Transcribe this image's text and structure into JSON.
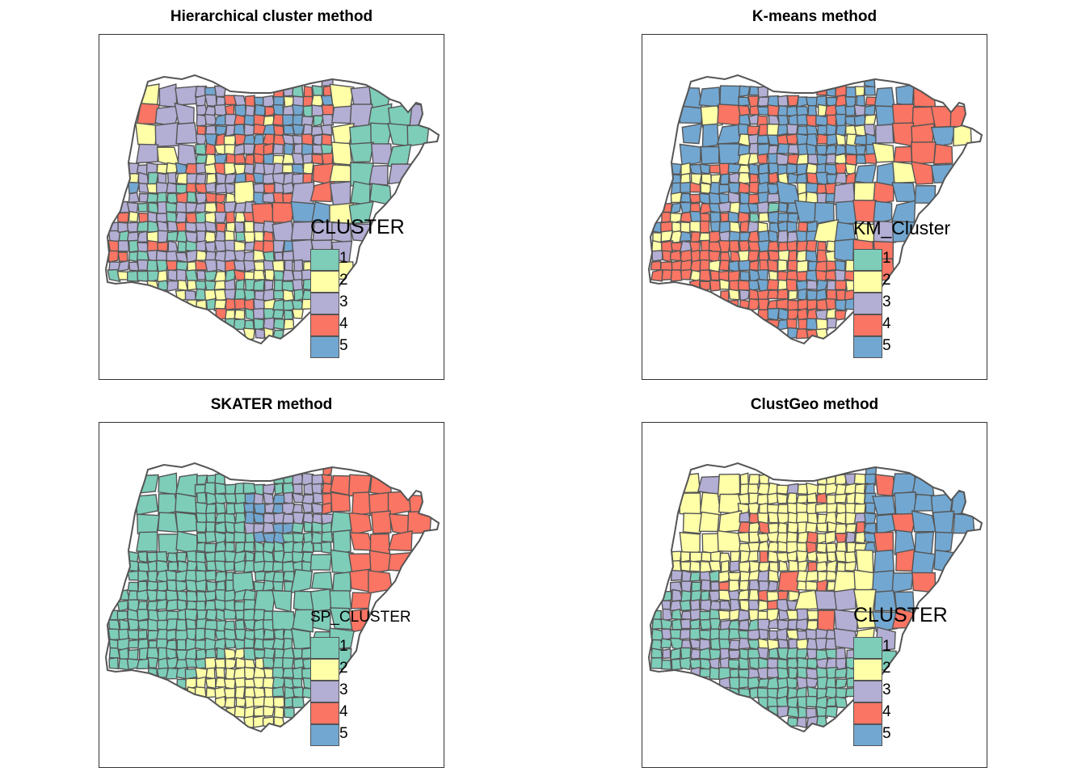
{
  "palette": {
    "1": "#7dcdb9",
    "2": "#ffffa8",
    "3": "#b3aed4",
    "4": "#fa7563",
    "5": "#72a7d1"
  },
  "border_color": "#555555",
  "panels": [
    {
      "title": "Hierarchical cluster method",
      "legend": {
        "title": "CLUSTER",
        "entries": [
          {
            "label": "1",
            "cluster": "1"
          },
          {
            "label": "2",
            "cluster": "2"
          },
          {
            "label": "3",
            "cluster": "3"
          },
          {
            "label": "4",
            "cluster": "4"
          },
          {
            "label": "5",
            "cluster": "5"
          }
        ]
      },
      "pattern": "mixed"
    },
    {
      "title": "K-means method",
      "legend": {
        "title": "KM_Cluster",
        "entries": [
          {
            "label": "1",
            "cluster": "1"
          },
          {
            "label": "2",
            "cluster": "2"
          },
          {
            "label": "3",
            "cluster": "3"
          },
          {
            "label": "4",
            "cluster": "4"
          },
          {
            "label": "5",
            "cluster": "5"
          }
        ]
      },
      "pattern": "kmeans"
    },
    {
      "title": "SKATER method",
      "legend": {
        "title": "SP_CLUSTER",
        "entries": [
          {
            "label": "1",
            "cluster": "1"
          },
          {
            "label": "2",
            "cluster": "2"
          },
          {
            "label": "3",
            "cluster": "3"
          },
          {
            "label": "4",
            "cluster": "4"
          },
          {
            "label": "5",
            "cluster": "5"
          }
        ]
      },
      "pattern": "skater"
    },
    {
      "title": "ClustGeo method",
      "legend": {
        "title": "CLUSTER",
        "entries": [
          {
            "label": "1",
            "cluster": "1"
          },
          {
            "label": "2",
            "cluster": "2"
          },
          {
            "label": "3",
            "cluster": "3"
          },
          {
            "label": "4",
            "cluster": "4"
          },
          {
            "label": "5",
            "cluster": "5"
          }
        ]
      },
      "pattern": "clustgeo"
    }
  ]
}
